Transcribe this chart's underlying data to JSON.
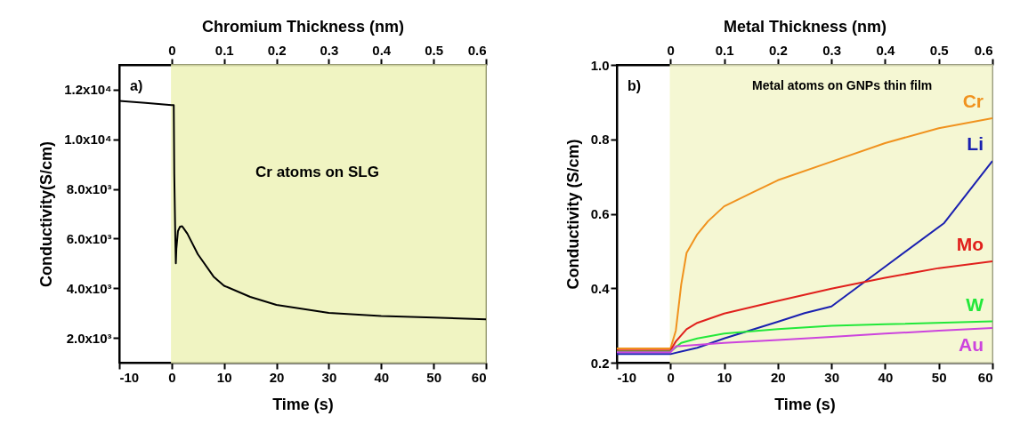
{
  "chart_data": [
    {
      "type": "line",
      "xlabel": "Time (s)",
      "ylabel": "Conductivity(S/cm)",
      "x2label": "Chromium Thickness (nm)",
      "xlim": [
        -10,
        60
      ],
      "xticks": [
        -10,
        0,
        10,
        20,
        30,
        40,
        50,
        60
      ],
      "x2lim": [
        -0.1,
        0.6
      ],
      "x2ticks": [
        0,
        0.1,
        0.2,
        0.3,
        0.4,
        0.5,
        0.6
      ],
      "ylim": [
        1000,
        13000
      ],
      "yticks": [
        {
          "value": 2000,
          "label": "2.0x10³"
        },
        {
          "value": 4000,
          "label": "4.0x10³"
        },
        {
          "value": 6000,
          "label": "6.0x10³"
        },
        {
          "value": 8000,
          "label": "8.0x10³"
        },
        {
          "value": 10000,
          "label": "1.0x10⁴"
        },
        {
          "value": 12000,
          "label": "1.2x10⁴"
        }
      ],
      "grid": false,
      "legend": false,
      "series": [
        {
          "color": "#000000",
          "x": [
            -10,
            -5,
            0,
            0.4,
            0.5,
            0.7,
            0.8,
            0.9,
            1.2,
            1.6,
            2,
            3,
            5,
            8,
            10,
            15,
            20,
            30,
            40,
            50,
            60
          ],
          "values": [
            11550,
            11470,
            11380,
            11380,
            8600,
            6000,
            5000,
            5600,
            6300,
            6480,
            6500,
            6200,
            5370,
            4470,
            4100,
            3650,
            3330,
            3010,
            2880,
            2820,
            2750
          ]
        }
      ],
      "bands": [
        {
          "axis": "x",
          "from": 0,
          "to": 60,
          "color": "#eef3b8"
        }
      ],
      "annotations": [
        "a)",
        "Cr atoms on SLG"
      ]
    },
    {
      "type": "line",
      "xlabel": "Time (s)",
      "ylabel": "Conductivity (S/cm)",
      "x2label": "Metal Thickness (nm)",
      "xlim": [
        -10,
        60
      ],
      "xticks": [
        -10,
        0,
        10,
        20,
        30,
        40,
        50,
        60
      ],
      "x2lim": [
        -0.1,
        0.6
      ],
      "x2ticks": [
        0,
        0.1,
        0.2,
        0.3,
        0.4,
        0.5,
        0.6
      ],
      "ylim": [
        0.2,
        1.0
      ],
      "yticks": [
        0.2,
        0.4,
        0.6,
        0.8,
        {
          "value": 1,
          "label": "1.0"
        }
      ],
      "grid": false,
      "legend": false,
      "series": [
        {
          "name": "Cr",
          "color": "#f0921e",
          "x": [
            -10,
            0,
            1,
            2,
            3,
            5,
            7,
            10,
            15,
            20,
            30,
            40,
            50,
            60
          ],
          "values": [
            0.238,
            0.238,
            0.286,
            0.41,
            0.495,
            0.545,
            0.58,
            0.62,
            0.655,
            0.69,
            0.74,
            0.79,
            0.83,
            0.857
          ]
        },
        {
          "name": "Li",
          "color": "#1a20b0",
          "x": [
            -10,
            0,
            5,
            10,
            20,
            25,
            30,
            40,
            51,
            60
          ],
          "values": [
            0.223,
            0.223,
            0.24,
            0.265,
            0.31,
            0.333,
            0.351,
            0.458,
            0.575,
            0.742
          ]
        },
        {
          "name": "Mo",
          "color": "#e0201c",
          "x": [
            -10,
            0,
            1,
            3,
            5,
            10,
            20,
            30,
            40,
            50,
            60
          ],
          "values": [
            0.233,
            0.233,
            0.257,
            0.29,
            0.307,
            0.332,
            0.366,
            0.399,
            0.428,
            0.454,
            0.472
          ]
        },
        {
          "name": "W",
          "color": "#22e83a",
          "x": [
            -10,
            0,
            2,
            5,
            10,
            20,
            30,
            40,
            60
          ],
          "values": [
            0.23,
            0.23,
            0.253,
            0.265,
            0.278,
            0.29,
            0.299,
            0.303,
            0.311
          ]
        },
        {
          "name": "Au",
          "color": "#cc44dd",
          "x": [
            -10,
            0,
            1,
            10,
            20,
            30,
            40,
            50,
            60
          ],
          "values": [
            0.228,
            0.228,
            0.244,
            0.253,
            0.261,
            0.269,
            0.278,
            0.286,
            0.293
          ]
        }
      ],
      "bands": [
        {
          "axis": "x",
          "from": 0,
          "to": 60,
          "color": "#f4f6cc"
        }
      ],
      "annotations": [
        "b)",
        "Metal atoms on GNPs thin film"
      ]
    }
  ]
}
